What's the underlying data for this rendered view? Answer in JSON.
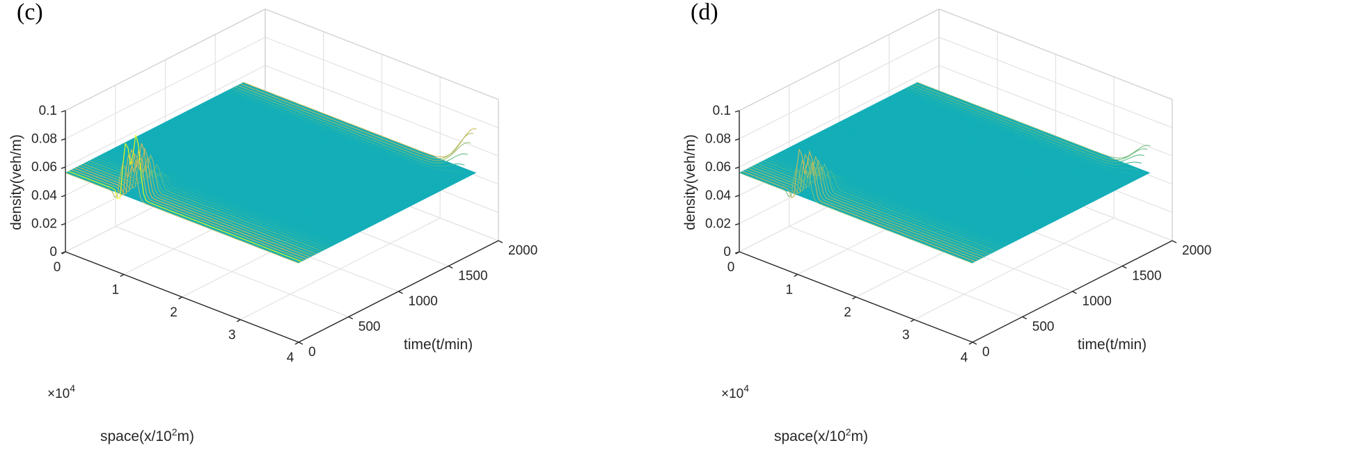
{
  "chart_data": [
    {
      "panel_label": "(c)",
      "type": "surface",
      "xlabel_prefix": "space(x/10",
      "xlabel_exp": "2",
      "xlabel_suffix": "m)",
      "ylabel": "time(t/min)",
      "zlabel": "density(veh/m)",
      "x_multiplier_base": "×10",
      "x_multiplier_exp": "4",
      "x_ticks": [
        "0",
        "1",
        "2",
        "3",
        "4"
      ],
      "y_ticks": [
        "0",
        "500",
        "1000",
        "1500",
        "2000"
      ],
      "z_ticks": [
        "0",
        "0.02",
        "0.04",
        "0.06",
        "0.08",
        "0.1"
      ],
      "xlim": [
        0,
        4
      ],
      "ylim": [
        0,
        2000
      ],
      "zlim": [
        0,
        0.1
      ],
      "grid": true,
      "colormap": "parula",
      "base_density": 0.056,
      "features": [
        {
          "time": 0,
          "space_start": 0.95,
          "space_end": 1.05,
          "peak": 0.0945,
          "dip": 0.04
        },
        {
          "time": 0,
          "space_start": 1.14,
          "space_end": 1.2,
          "peak": 0.1,
          "dip": 0.045
        },
        {
          "time": 1780,
          "space": 4.0,
          "peak": 0.087,
          "dip": 0.062
        }
      ]
    },
    {
      "panel_label": "(d)",
      "type": "surface",
      "xlabel_prefix": "space(x/10",
      "xlabel_exp": "2",
      "xlabel_suffix": "m)",
      "ylabel": "time(t/min)",
      "zlabel": "density(veh/m)",
      "x_multiplier_base": "×10",
      "x_multiplier_exp": "4",
      "x_ticks": [
        "0",
        "1",
        "2",
        "3",
        "4"
      ],
      "y_ticks": [
        "0",
        "500",
        "1000",
        "1500",
        "2000"
      ],
      "z_ticks": [
        "0",
        "0.02",
        "0.04",
        "0.06",
        "0.08",
        "0.1"
      ],
      "xlim": [
        0,
        4
      ],
      "ylim": [
        0,
        2000
      ],
      "zlim": [
        0,
        0.1
      ],
      "grid": true,
      "colormap": "parula",
      "base_density": 0.056,
      "features": [
        {
          "time": 0,
          "space_start": 0.95,
          "space_end": 1.05,
          "peak": 0.09,
          "dip": 0.042
        },
        {
          "time": 0,
          "space_start": 1.14,
          "space_end": 1.2,
          "peak": 0.088,
          "dip": 0.044
        },
        {
          "time": 1780,
          "space": 4.0,
          "peak": 0.075,
          "dip": 0.06
        }
      ]
    }
  ]
}
